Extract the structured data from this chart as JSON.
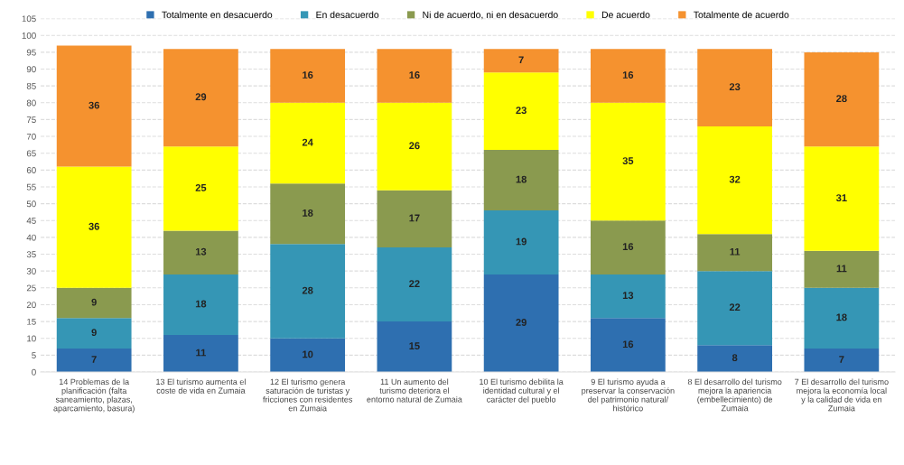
{
  "chart_data": {
    "type": "bar",
    "stacked": true,
    "categories": [
      "14 Problemas de la planificación (falta saneamiento, plazas, aparcamiento, basura)",
      "13 El turismo aumenta el coste de vida en Zumaia",
      "12 El turismo genera saturación de turistas y fricciones con residentes en Zumaia",
      "11 Un aumento del turismo deteriora el entorno natural de Zumaia",
      "10 El turismo debilita la identidad cultural y el carácter del pueblo",
      "9 El turismo ayuda a preservar la conservación del patrimonio natural/ histórico",
      "8 El desarrollo del turismo mejora la apariencia (embellecimiento) de Zumaia",
      "7 El desarrollo del turismo mejora la economía local y la calidad de vida en Zumaia"
    ],
    "series": [
      {
        "name": "Totalmente en desacuerdo",
        "color": "#2e6fb0",
        "values": [
          7,
          11,
          10,
          15,
          29,
          16,
          8,
          7
        ]
      },
      {
        "name": "En desacuerdo",
        "color": "#3596b5",
        "values": [
          9,
          18,
          28,
          22,
          19,
          13,
          22,
          18
        ]
      },
      {
        "name": "Ni de acuerdo, ni en desacuerdo",
        "color": "#8a9a4f",
        "values": [
          9,
          13,
          18,
          17,
          18,
          16,
          11,
          11
        ]
      },
      {
        "name": "De acuerdo",
        "color": "#ffff00",
        "values": [
          36,
          25,
          24,
          26,
          23,
          35,
          32,
          31
        ]
      },
      {
        "name": "Totalmente de acuerdo",
        "color": "#f5922f",
        "values": [
          36,
          29,
          16,
          16,
          7,
          16,
          23,
          28
        ]
      }
    ],
    "ylim": [
      0,
      105
    ],
    "yticks": [
      0,
      5,
      10,
      15,
      20,
      25,
      30,
      35,
      40,
      45,
      50,
      55,
      60,
      65,
      70,
      75,
      80,
      85,
      90,
      95,
      100,
      105
    ],
    "grid": "y",
    "legend": "top",
    "data_labels": true
  }
}
